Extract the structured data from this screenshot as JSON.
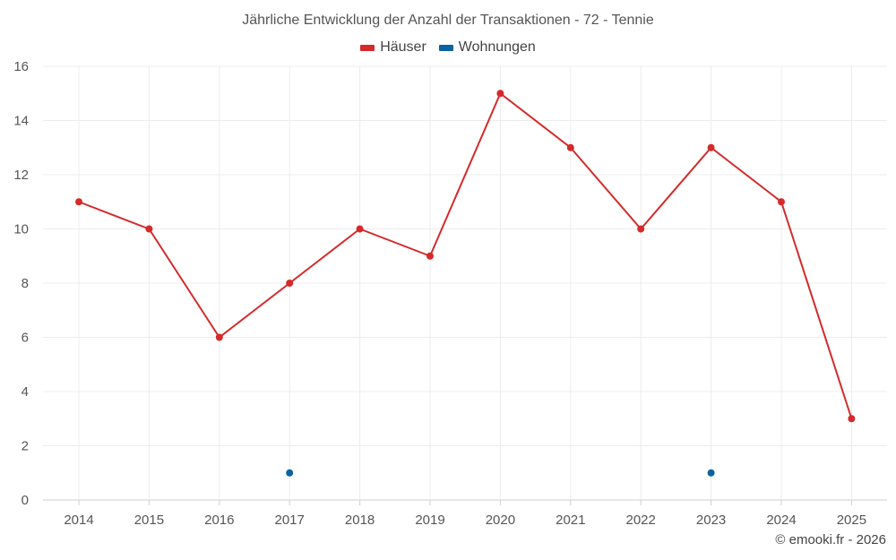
{
  "chart_data": {
    "type": "line",
    "title": "Jährliche Entwicklung der Anzahl der Transaktionen - 72 - Tennie",
    "xlabel": "",
    "ylabel": "",
    "categories": [
      "2014",
      "2015",
      "2016",
      "2017",
      "2018",
      "2019",
      "2020",
      "2021",
      "2022",
      "2023",
      "2024",
      "2025"
    ],
    "ylim": [
      0,
      16
    ],
    "yticks": [
      0,
      2,
      4,
      6,
      8,
      10,
      12,
      14,
      16
    ],
    "grid": true,
    "legend_position": "top-center",
    "series": [
      {
        "name": "Häuser",
        "color": "#d42a2a",
        "values": [
          11,
          10,
          6,
          8,
          10,
          9,
          15,
          13,
          10,
          13,
          11,
          3
        ]
      },
      {
        "name": "Wohnungen",
        "color": "#0a64a0",
        "values": [
          null,
          null,
          null,
          1,
          null,
          null,
          null,
          null,
          null,
          1,
          null,
          null
        ]
      }
    ]
  },
  "credit": "© emooki.fr - 2026"
}
